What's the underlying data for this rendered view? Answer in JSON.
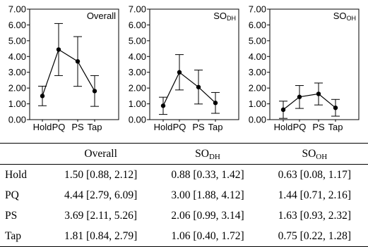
{
  "chart_data": [
    {
      "type": "line",
      "title": "Overall",
      "categories": [
        "Hold",
        "PQ",
        "PS",
        "Tap"
      ],
      "yticks": [
        "0.00",
        "1.00",
        "2.00",
        "3.00",
        "4.00",
        "5.00",
        "6.00",
        "7.00"
      ],
      "ylim": [
        0,
        7
      ],
      "values": [
        1.5,
        4.44,
        3.69,
        1.81
      ],
      "ci_low": [
        0.88,
        2.79,
        2.11,
        0.84
      ],
      "ci_high": [
        2.12,
        6.09,
        5.26,
        2.79
      ]
    },
    {
      "type": "line",
      "title": "SO",
      "title_sub": "DH",
      "categories": [
        "Hold",
        "PQ",
        "PS",
        "Tap"
      ],
      "yticks": [
        "0.00",
        "1.00",
        "2.00",
        "3.00",
        "4.00",
        "5.00",
        "6.00",
        "7.00"
      ],
      "ylim": [
        0,
        7
      ],
      "values": [
        0.88,
        3.0,
        2.06,
        1.06
      ],
      "ci_low": [
        0.33,
        1.88,
        0.99,
        0.4
      ],
      "ci_high": [
        1.42,
        4.12,
        3.14,
        1.72
      ]
    },
    {
      "type": "line",
      "title": "SO",
      "title_sub": "OH",
      "categories": [
        "Hold",
        "PQ",
        "PS",
        "Tap"
      ],
      "yticks": [
        "0.00",
        "1.00",
        "2.00",
        "3.00",
        "4.00",
        "5.00",
        "6.00",
        "7.00"
      ],
      "ylim": [
        0,
        7
      ],
      "values": [
        0.63,
        1.44,
        1.63,
        0.75
      ],
      "ci_low": [
        0.08,
        0.71,
        0.93,
        0.22
      ],
      "ci_high": [
        1.17,
        2.16,
        2.32,
        1.28
      ]
    }
  ],
  "table": {
    "headers": [
      {
        "main": "Overall",
        "sub": ""
      },
      {
        "main": "SO",
        "sub": "DH"
      },
      {
        "main": "SO",
        "sub": "OH"
      }
    ],
    "rows": [
      {
        "label": "Hold",
        "cells": [
          "1.50 [0.88, 2.12]",
          "0.88 [0.33, 1.42]",
          "0.63 [0.08, 1.17]"
        ]
      },
      {
        "label": "PQ",
        "cells": [
          "4.44 [2.79, 6.09]",
          "3.00 [1.88, 4.12]",
          "1.44 [0.71, 2.16]"
        ]
      },
      {
        "label": "PS",
        "cells": [
          "3.69 [2.11, 5.26]",
          "2.06 [0.99, 3.14]",
          "1.63 [0.93, 2.32]"
        ]
      },
      {
        "label": "Tap",
        "cells": [
          "1.81 [0.84, 2.79]",
          "1.06 [0.40, 1.72]",
          "0.75 [0.22, 1.28]"
        ]
      }
    ]
  }
}
